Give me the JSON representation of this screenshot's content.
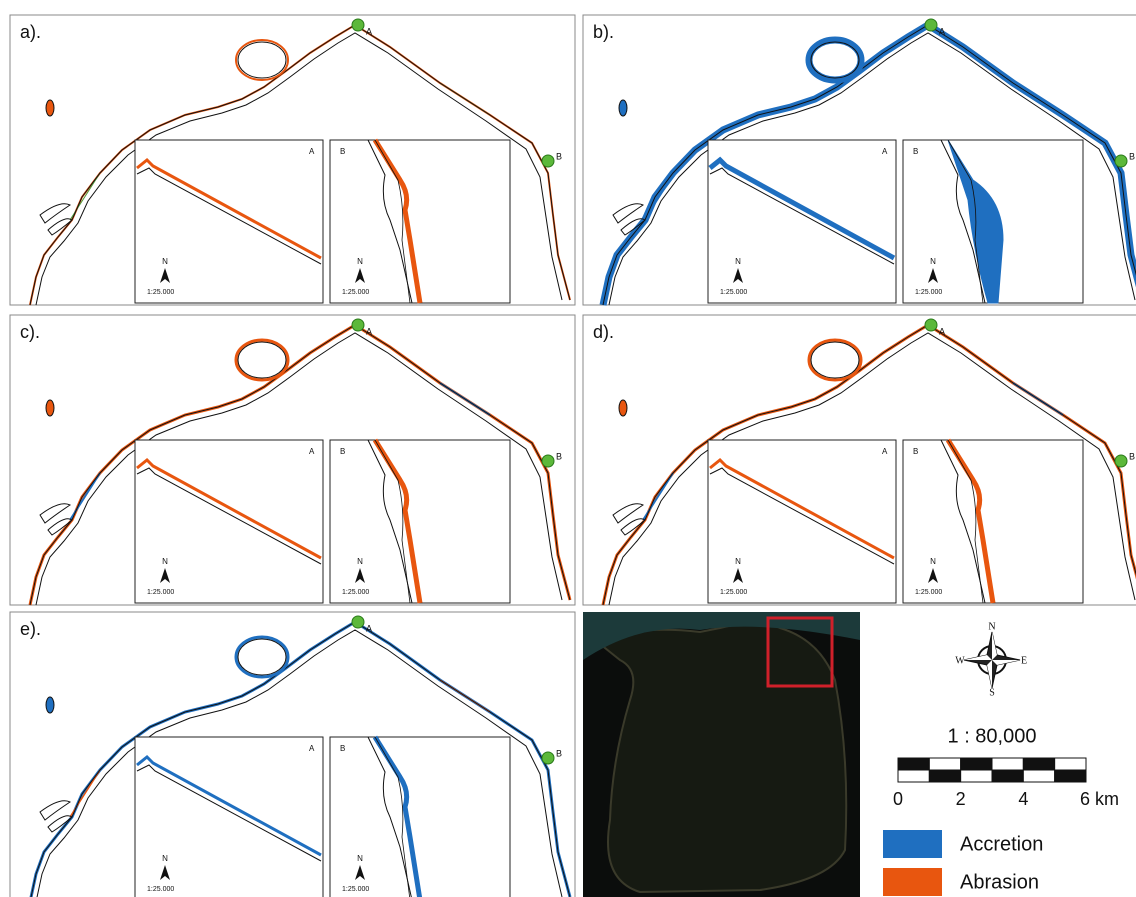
{
  "panels": [
    {
      "label": "a).",
      "point_a": "A",
      "point_b": "B",
      "insets": [
        {
          "label": "A",
          "north": "N",
          "scale": "1:25.000"
        },
        {
          "label": "B",
          "north": "N",
          "scale": "1:25.000"
        }
      ]
    },
    {
      "label": "b).",
      "point_a": "A",
      "point_b": "B",
      "insets": [
        {
          "label": "A",
          "north": "N",
          "scale": "1:25.000"
        },
        {
          "label": "B",
          "north": "N",
          "scale": "1:25.000"
        }
      ]
    },
    {
      "label": "c).",
      "point_a": "A",
      "point_b": "B",
      "insets": [
        {
          "label": "A",
          "north": "N",
          "scale": "1:25.000"
        },
        {
          "label": "B",
          "north": "N",
          "scale": "1:25.000"
        }
      ]
    },
    {
      "label": "d).",
      "point_a": "A",
      "point_b": "B",
      "insets": [
        {
          "label": "A",
          "north": "N",
          "scale": "1:25.000"
        },
        {
          "label": "B",
          "north": "N",
          "scale": "1:25.000"
        }
      ]
    },
    {
      "label": "e).",
      "point_a": "A",
      "point_b": "B",
      "insets": [
        {
          "label": "A",
          "north": "N",
          "scale": "1:25.000"
        },
        {
          "label": "B",
          "north": "N",
          "scale": "1:25.000"
        }
      ]
    }
  ],
  "location_map": {
    "compass": {
      "n": "N",
      "s": "S",
      "e": "E",
      "w": "W"
    },
    "scale": {
      "ratio": "1 : 80,000",
      "ticks": [
        "0",
        "2",
        "4",
        "6 km"
      ]
    },
    "legend": [
      {
        "name": "Accretion",
        "color": "#1f6fc0"
      },
      {
        "name": "Abrasion",
        "color": "#e8560f"
      }
    ]
  }
}
